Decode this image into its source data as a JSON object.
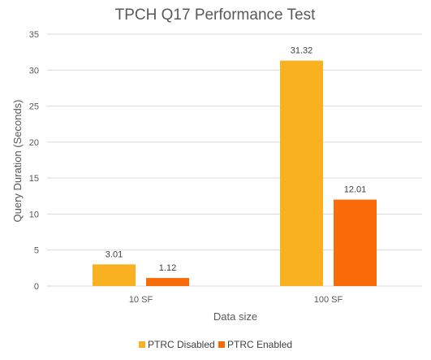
{
  "chart_data": {
    "type": "bar",
    "title": "TPCH Q17 Performance Test",
    "xlabel": "Data size",
    "ylabel": "Query Duration (Seconds)",
    "categories": [
      "10 SF",
      "100 SF"
    ],
    "series": [
      {
        "name": "PTRC Disabled",
        "values": [
          3.01,
          31.32
        ],
        "color": "#f9b122"
      },
      {
        "name": "PTRC Enabled",
        "values": [
          1.12,
          12.01
        ],
        "color": "#f86b08"
      }
    ],
    "ylim": [
      0,
      35
    ],
    "yticks": [
      0,
      5,
      10,
      15,
      20,
      25,
      30,
      35
    ],
    "grid": true,
    "legend_position": "bottom"
  }
}
